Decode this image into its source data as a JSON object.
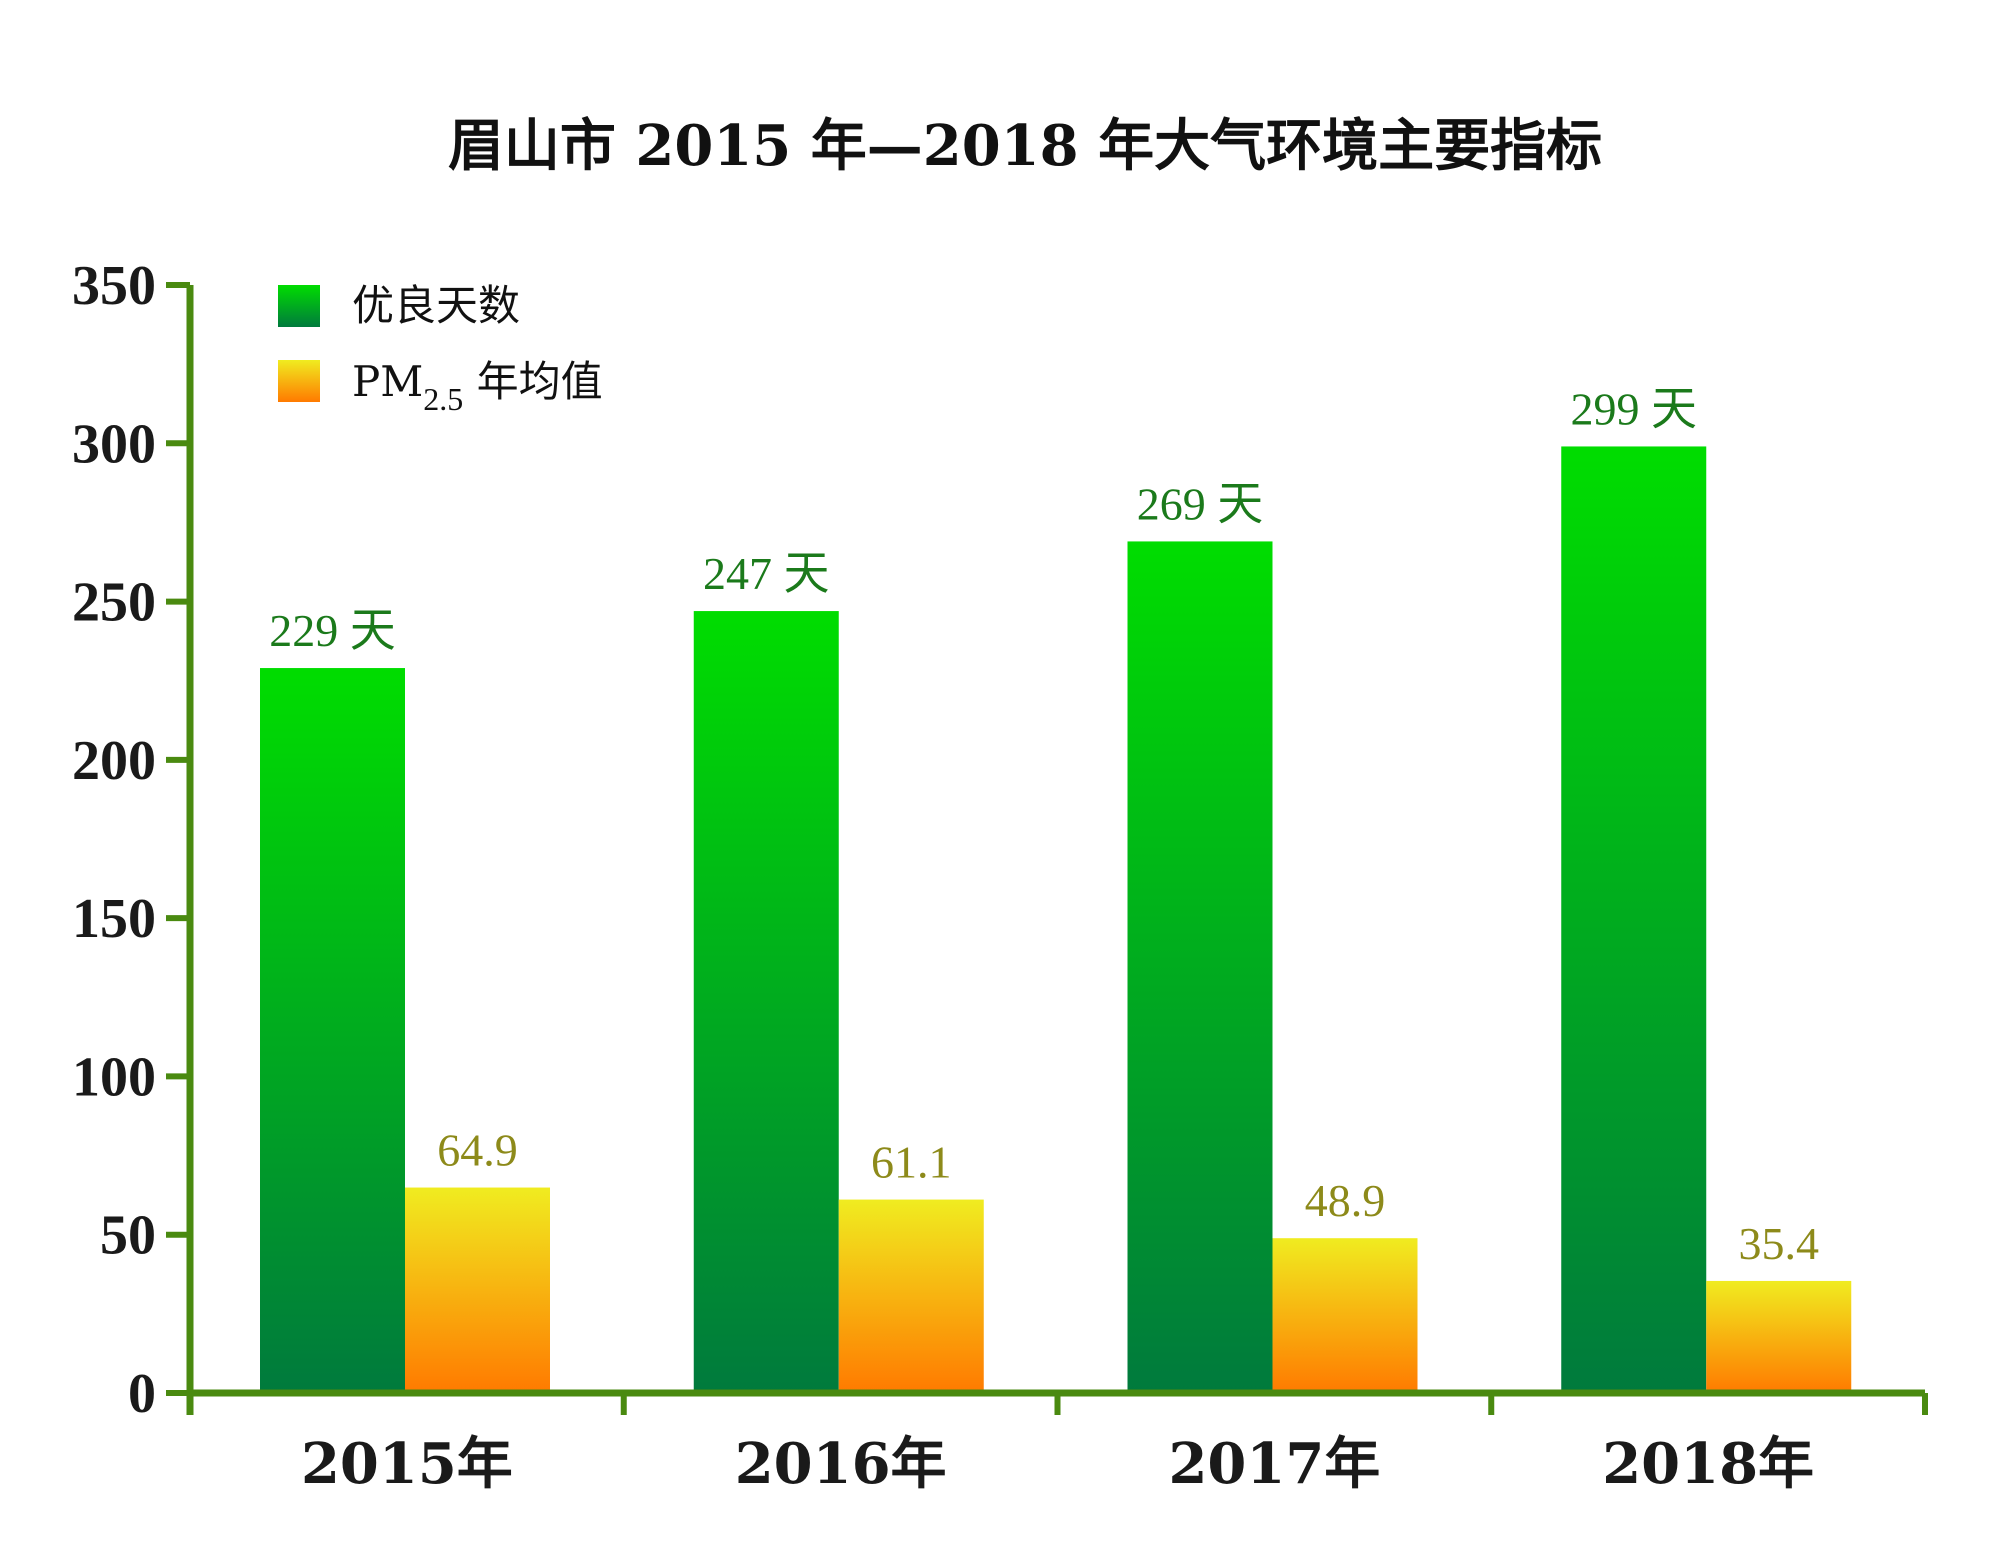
{
  "chart_data": {
    "type": "bar",
    "title": "眉山市 2015 年—2018 年大气环境主要指标",
    "categories": [
      "2015年",
      "2016年",
      "2017年",
      "2018年"
    ],
    "yticks": [
      "0",
      "50",
      "100",
      "150",
      "200",
      "250",
      "300",
      "350"
    ],
    "ylim": [
      0,
      350
    ],
    "legend": {
      "placement": "top-left",
      "series_0": "优良天数",
      "series_1_prefix": "PM",
      "series_1_sub": "2.5",
      "series_1_suffix": " 年均值"
    },
    "series": [
      {
        "values": [
          229,
          247,
          269,
          299
        ],
        "labels": [
          "229 天",
          "247 天",
          "269 天",
          "299 天"
        ],
        "color_top": "#00dd00",
        "color_bottom": "#007a3d"
      },
      {
        "values": [
          64.9,
          61.1,
          48.9,
          35.4
        ],
        "labels": [
          "64.9",
          "61.1",
          "48.9",
          "35.4"
        ],
        "color_top": "#f0ec20",
        "color_bottom": "#ff7a00"
      }
    ],
    "axis_color": "#4a8a10"
  }
}
